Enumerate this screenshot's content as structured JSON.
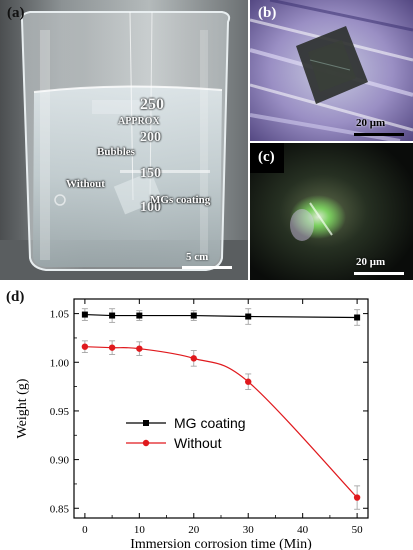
{
  "panels": {
    "a": {
      "label": "(a)",
      "beaker_marks": [
        "250",
        "APPROX",
        "200",
        "150",
        "100"
      ],
      "annotations": {
        "bubbles": "Bubbles",
        "without": "Without",
        "coating": "MGs coating"
      },
      "scale_bar": "5 cm"
    },
    "b": {
      "label": "(b)",
      "scale_bar": "20 μm"
    },
    "c": {
      "label": "(c)",
      "scale_bar": "20 μm"
    },
    "d": {
      "label": "(d)"
    }
  },
  "chart_data": {
    "type": "line",
    "xlabel": "Immersion corrosion time (Min)",
    "ylabel": "Weight (g)",
    "xlim": [
      -2,
      52
    ],
    "ylim": [
      0.84,
      1.065
    ],
    "xticks": [
      "0",
      "10",
      "20",
      "30",
      "40",
      "50"
    ],
    "yticks": [
      "0.85",
      "0.90",
      "0.95",
      "1.00",
      "1.05"
    ],
    "grid": false,
    "legend_position": "bottom-left",
    "series": [
      {
        "name": "MG coating",
        "color": "#000000",
        "marker": "square",
        "x": [
          0,
          5,
          10,
          20,
          30,
          50
        ],
        "y": [
          1.049,
          1.048,
          1.048,
          1.048,
          1.047,
          1.046
        ],
        "err": [
          0.006,
          0.007,
          0.005,
          0.005,
          0.008,
          0.008
        ]
      },
      {
        "name": "Without",
        "color": "#e0191d",
        "marker": "circle",
        "x": [
          0,
          5,
          10,
          20,
          30,
          50
        ],
        "y": [
          1.016,
          1.015,
          1.014,
          1.004,
          0.98,
          0.861
        ],
        "err": [
          0.006,
          0.007,
          0.007,
          0.008,
          0.008,
          0.012
        ]
      }
    ]
  }
}
